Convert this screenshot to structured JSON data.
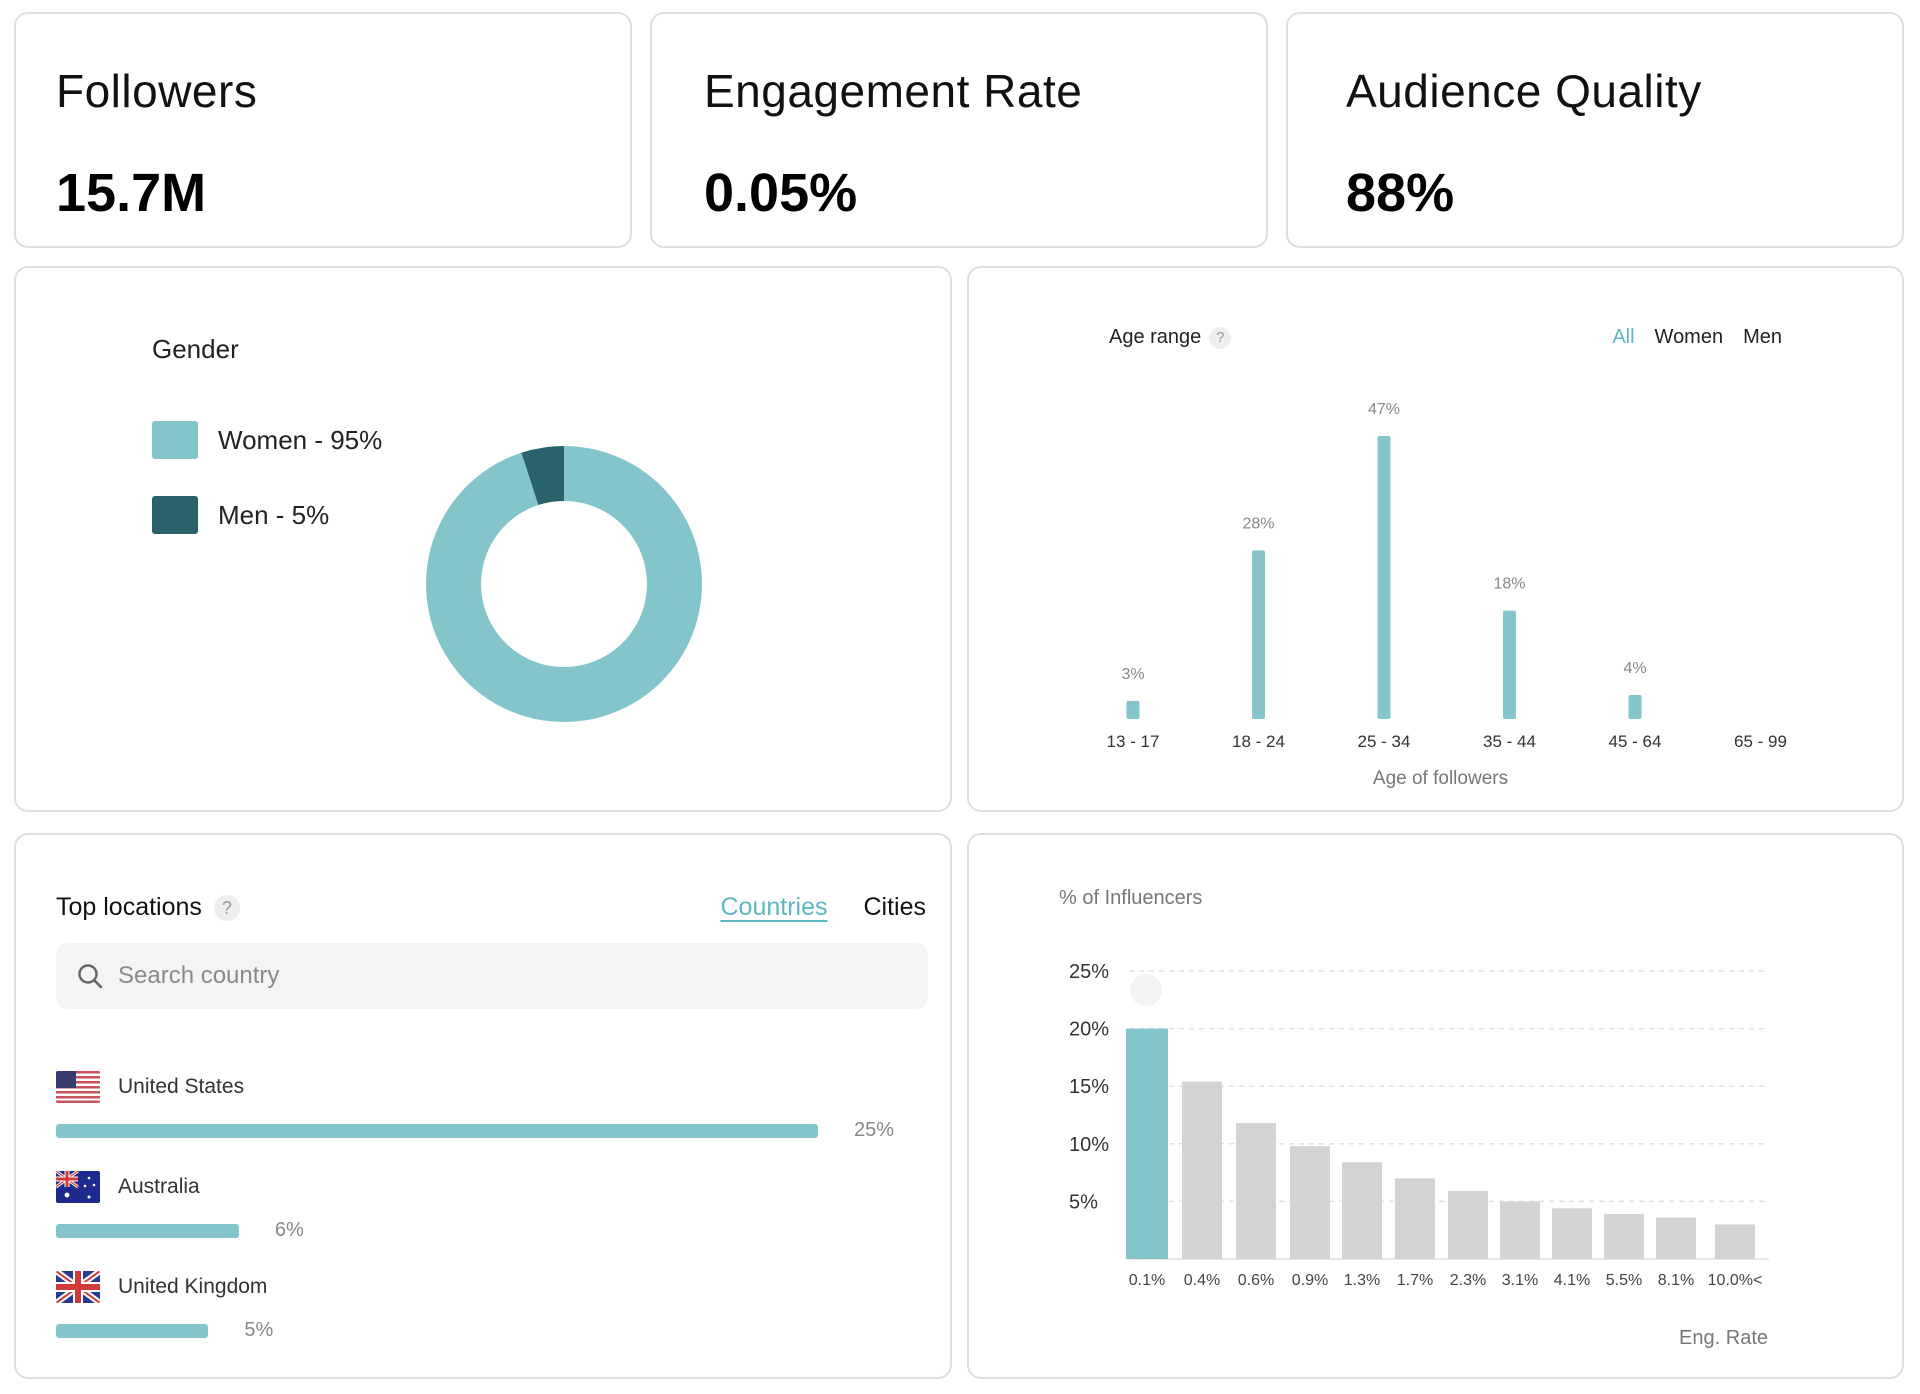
{
  "stats": [
    {
      "title": "Followers",
      "value": "15.7M"
    },
    {
      "title": "Engagement Rate",
      "value": "0.05%"
    },
    {
      "title": "Audience Quality",
      "value": "88%"
    }
  ],
  "colors": {
    "accent": "#84c5cc",
    "accent_dark": "#2a626b",
    "link": "#5cb8c2",
    "muted_bar": "#d3d3d3"
  },
  "gender": {
    "title": "Gender",
    "legend": [
      {
        "label": "Women - 95%"
      },
      {
        "label": "Men - 5%"
      }
    ]
  },
  "age": {
    "title": "Age range",
    "help": "?",
    "tabs": [
      {
        "label": "All",
        "active": true
      },
      {
        "label": "Women",
        "active": false
      },
      {
        "label": "Men",
        "active": false
      }
    ],
    "xtitle": "Age of followers"
  },
  "locations": {
    "title": "Top locations",
    "help": "?",
    "tabs": [
      {
        "label": "Countries",
        "active": true
      },
      {
        "label": "Cities",
        "active": false
      }
    ],
    "search_placeholder": "Search country",
    "search_value": "",
    "items": [
      {
        "name": "United States",
        "pct_label": "25%",
        "pct": 25,
        "flag": "us-flag-icon"
      },
      {
        "name": "Australia",
        "pct_label": "6%",
        "pct": 6,
        "flag": "australia-flag-icon"
      },
      {
        "name": "United Kingdom",
        "pct_label": "5%",
        "pct": 5,
        "flag": "uk-flag-icon"
      }
    ]
  },
  "engagement": {
    "ytitle": "% of Influencers",
    "xtitle": "Eng. Rate"
  },
  "chart_data": [
    {
      "type": "pie",
      "title": "Gender",
      "categories": [
        "Women",
        "Men"
      ],
      "values": [
        95,
        5
      ],
      "donut": true,
      "legend": "left"
    },
    {
      "type": "bar",
      "title": "Age range",
      "xlabel": "Age of followers",
      "ylabel": "",
      "categories": [
        "13 - 17",
        "18 - 24",
        "25 - 34",
        "35 - 44",
        "45 - 64",
        "65 - 99"
      ],
      "values": [
        3,
        28,
        47,
        18,
        4,
        0
      ],
      "data_labels": [
        "3%",
        "28%",
        "47%",
        "18%",
        "4%",
        ""
      ],
      "ylim": [
        0,
        47
      ],
      "grid": false
    },
    {
      "type": "bar",
      "title": "",
      "xlabel": "Eng. Rate",
      "ylabel": "% of Influencers",
      "categories": [
        "0.1%",
        "0.4%",
        "0.6%",
        "0.9%",
        "1.3%",
        "1.7%",
        "2.3%",
        "3.1%",
        "4.1%",
        "5.5%",
        "8.1%",
        "10.0%<"
      ],
      "values": [
        20,
        15.4,
        11.8,
        9.8,
        8.4,
        7.0,
        5.9,
        5.0,
        4.4,
        3.9,
        3.6,
        3.0
      ],
      "highlighted_index": 0,
      "yticks": [
        "5%",
        "10%",
        "15%",
        "20%",
        "25%"
      ],
      "ytick_values": [
        5,
        10,
        15,
        20,
        25
      ],
      "ylim": [
        0,
        25
      ],
      "grid": true
    }
  ]
}
